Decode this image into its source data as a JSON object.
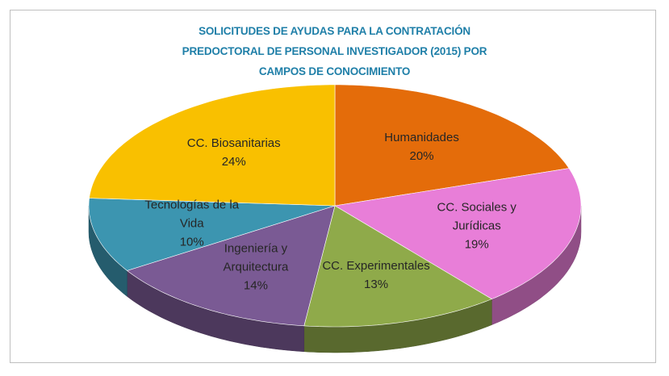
{
  "chart_data": {
    "type": "pie3d",
    "title": "SOLICITUDES DE AYUDAS PARA LA CONTRATACIÓN PREDOCTORAL DE PERSONAL INVESTIGADOR (2015) POR CAMPOS DE CONOCIMIENTO",
    "categories": [
      "Humanidades",
      "CC. Sociales y Jurídicas",
      "CC. Experimentales",
      "Ingeniería y Arquitectura",
      "Tecnologías de la Vida",
      "CC. Biosanitarias"
    ],
    "values": [
      20,
      19,
      13,
      14,
      10,
      24
    ],
    "value_labels": [
      "20%",
      "19%",
      "13%",
      "14%",
      "10%",
      "24%"
    ],
    "colors": [
      "#e46c0a",
      "#e87ed8",
      "#8faa4a",
      "#7a5a94",
      "#3c95b0",
      "#f9c000"
    ]
  }
}
